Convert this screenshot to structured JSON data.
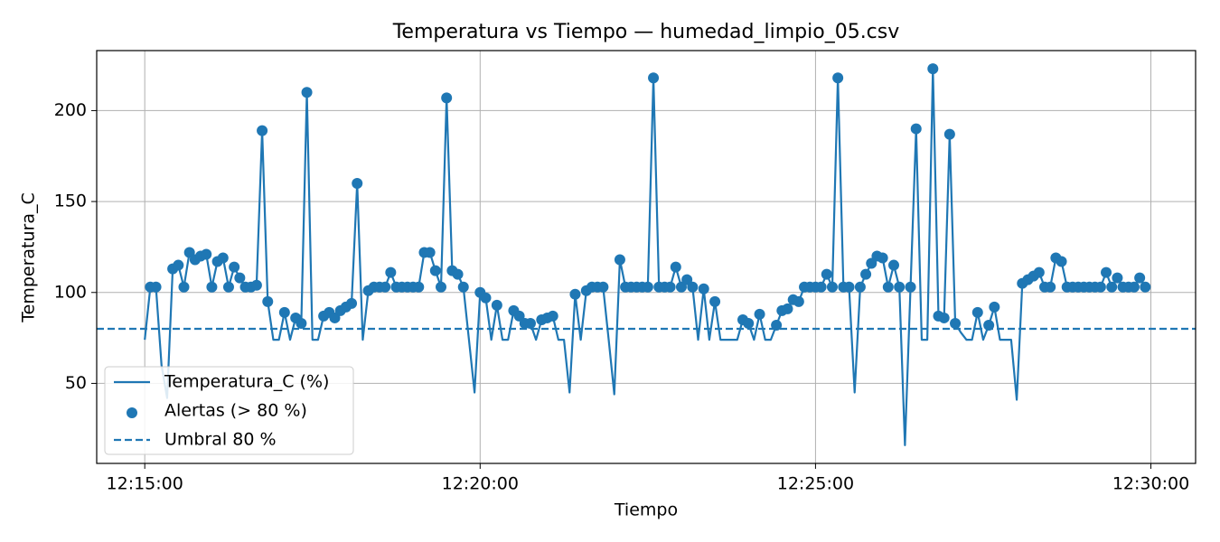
{
  "chart_data": {
    "type": "line",
    "title": "Temperatura vs Tiempo — humedad_limpio_05.csv",
    "x_label": "Tiempo",
    "y_label": "Temperatura_C",
    "x": [
      "12:15:00",
      "12:15:05",
      "12:15:10",
      "12:15:15",
      "12:15:20",
      "12:15:25",
      "12:15:30",
      "12:15:35",
      "12:15:40",
      "12:15:45",
      "12:15:50",
      "12:15:55",
      "12:16:00",
      "12:16:05",
      "12:16:10",
      "12:16:15",
      "12:16:20",
      "12:16:25",
      "12:16:30",
      "12:16:35",
      "12:16:40",
      "12:16:45",
      "12:16:50",
      "12:16:55",
      "12:17:00",
      "12:17:05",
      "12:17:10",
      "12:17:15",
      "12:17:20",
      "12:17:25",
      "12:17:30",
      "12:17:35",
      "12:17:40",
      "12:17:45",
      "12:17:50",
      "12:17:55",
      "12:18:00",
      "12:18:05",
      "12:18:10",
      "12:18:15",
      "12:18:20",
      "12:18:25",
      "12:18:30",
      "12:18:35",
      "12:18:40",
      "12:18:45",
      "12:18:50",
      "12:18:55",
      "12:19:00",
      "12:19:05",
      "12:19:10",
      "12:19:15",
      "12:19:20",
      "12:19:25",
      "12:19:30",
      "12:19:35",
      "12:19:40",
      "12:19:45",
      "12:19:50",
      "12:19:55",
      "12:20:00",
      "12:20:05",
      "12:20:10",
      "12:20:15",
      "12:20:20",
      "12:20:25",
      "12:20:30",
      "12:20:35",
      "12:20:40",
      "12:20:45",
      "12:20:50",
      "12:20:55",
      "12:21:00",
      "12:21:05",
      "12:21:10",
      "12:21:15",
      "12:21:20",
      "12:21:25",
      "12:21:30",
      "12:21:35",
      "12:21:40",
      "12:21:45",
      "12:21:50",
      "12:21:55",
      "12:22:00",
      "12:22:05",
      "12:22:10",
      "12:22:15",
      "12:22:20",
      "12:22:25",
      "12:22:30",
      "12:22:35",
      "12:22:40",
      "12:22:45",
      "12:22:50",
      "12:22:55",
      "12:23:00",
      "12:23:05",
      "12:23:10",
      "12:23:15",
      "12:23:20",
      "12:23:25",
      "12:23:30",
      "12:23:35",
      "12:23:40",
      "12:23:45",
      "12:23:50",
      "12:23:55",
      "12:24:00",
      "12:24:05",
      "12:24:10",
      "12:24:15",
      "12:24:20",
      "12:24:25",
      "12:24:30",
      "12:24:35",
      "12:24:40",
      "12:24:45",
      "12:24:50",
      "12:24:55",
      "12:25:00",
      "12:25:05",
      "12:25:10",
      "12:25:15",
      "12:25:20",
      "12:25:25",
      "12:25:30",
      "12:25:35",
      "12:25:40",
      "12:25:45",
      "12:25:50",
      "12:25:55",
      "12:26:00",
      "12:26:05",
      "12:26:10",
      "12:26:15",
      "12:26:20",
      "12:26:25",
      "12:26:30",
      "12:26:35",
      "12:26:40",
      "12:26:45",
      "12:26:50",
      "12:26:55",
      "12:27:00",
      "12:27:05",
      "12:27:10",
      "12:27:15",
      "12:27:20",
      "12:27:25",
      "12:27:30",
      "12:27:35",
      "12:27:40",
      "12:27:45",
      "12:27:50",
      "12:27:55",
      "12:28:00",
      "12:28:05",
      "12:28:10",
      "12:28:15",
      "12:28:20",
      "12:28:25",
      "12:28:30",
      "12:28:35",
      "12:28:40",
      "12:28:45",
      "12:28:50",
      "12:28:55",
      "12:29:00",
      "12:29:05",
      "12:29:10",
      "12:29:15",
      "12:29:20",
      "12:29:25",
      "12:29:30",
      "12:29:35",
      "12:29:40",
      "12:29:45",
      "12:29:50",
      "12:29:55"
    ],
    "series": [
      {
        "name": "Temperatura_C (%)",
        "color": "#1f77b4",
        "values": [
          74,
          103,
          103,
          60,
          42,
          113,
          115,
          103,
          122,
          118,
          120,
          121,
          103,
          117,
          119,
          103,
          114,
          108,
          103,
          103,
          104,
          189,
          95,
          74,
          74,
          89,
          74,
          86,
          83,
          210,
          74,
          74,
          87,
          89,
          86,
          90,
          92,
          94,
          160,
          74,
          101,
          103,
          103,
          103,
          111,
          103,
          103,
          103,
          103,
          103,
          122,
          122,
          112,
          103,
          207,
          112,
          110,
          103,
          74,
          45,
          100,
          97,
          74,
          93,
          74,
          74,
          90,
          87,
          83,
          83,
          74,
          85,
          86,
          87,
          74,
          74,
          45,
          99,
          74,
          101,
          103,
          103,
          103,
          74,
          44,
          118,
          103,
          103,
          103,
          103,
          103,
          218,
          103,
          103,
          103,
          114,
          103,
          107,
          103,
          74,
          102,
          74,
          95,
          74,
          74,
          74,
          74,
          85,
          83,
          74,
          88,
          74,
          74,
          82,
          90,
          91,
          96,
          95,
          103,
          103,
          103,
          103,
          110,
          103,
          218,
          103,
          103,
          45,
          103,
          110,
          116,
          120,
          119,
          103,
          115,
          103,
          16,
          103,
          190,
          74,
          74,
          223,
          87,
          86,
          187,
          83,
          78,
          74,
          74,
          89,
          74,
          82,
          92,
          74,
          74,
          74,
          41,
          105,
          107,
          109,
          111,
          103,
          103,
          119,
          117,
          103,
          103,
          103,
          103,
          103,
          103,
          103,
          111,
          103,
          108,
          103,
          103,
          103,
          108,
          103
        ]
      }
    ],
    "alerts": {
      "name": "Alertas (> 80 %)",
      "color": "#1f77b4"
    },
    "threshold": {
      "name": "Umbral 80 %",
      "value": 80,
      "color": "#1f77b4"
    },
    "xlim": [
      "12:14:17",
      "12:30:40"
    ],
    "xticks": [
      "12:15:00",
      "12:20:00",
      "12:25:00",
      "12:30:00"
    ],
    "ylim": [
      6,
      233
    ],
    "yticks": [
      50,
      100,
      150,
      200
    ],
    "grid": true,
    "legend": "lower left"
  }
}
